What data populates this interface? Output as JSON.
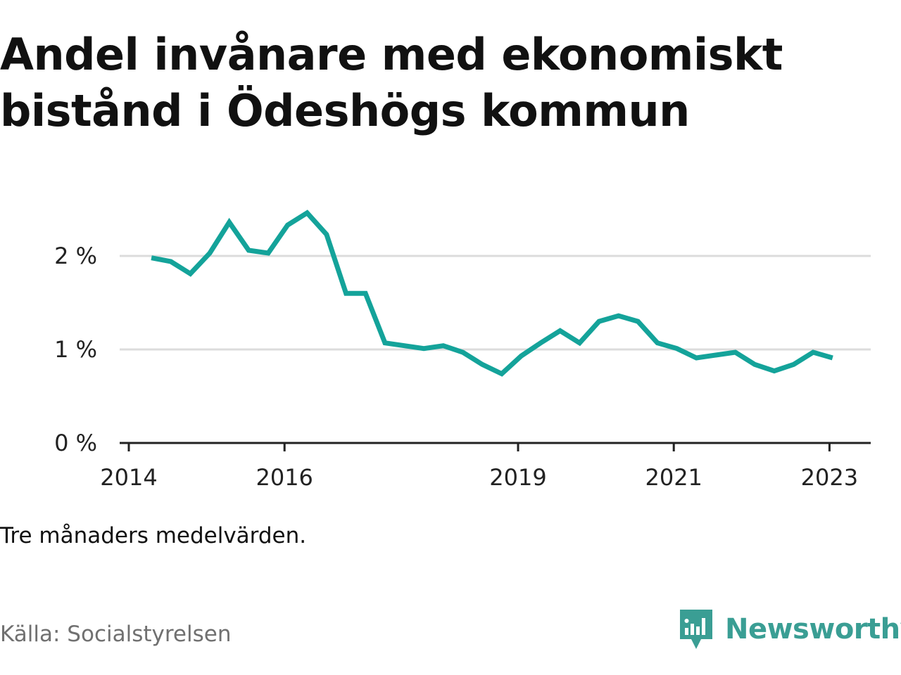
{
  "title": "Andel invånare med ekonomiskt bistånd i Ödeshögs kommun",
  "caption": "Tre månaders medelvärden.",
  "source": "Källa: Socialstyrelsen",
  "logo": {
    "name": "Newsworthy",
    "icon": "newsworthy-chart-bubble-icon"
  },
  "colors": {
    "line": "#14a39a",
    "grid": "#dcdcdc",
    "axis": "#222222",
    "text": "#111111",
    "source": "#707070",
    "logo": "#3a9e94"
  },
  "chart_data": {
    "type": "line",
    "title": "Andel invånare med ekonomiskt bistånd i Ödeshögs kommun",
    "xlabel": "",
    "ylabel": "",
    "xlim": [
      2014.0,
      2023.5
    ],
    "ylim": [
      0,
      2.6
    ],
    "y_ticks": [
      0,
      1,
      2
    ],
    "y_tick_labels": [
      "0 %",
      "1 %",
      "2 %"
    ],
    "x_ticks": [
      2014,
      2016,
      2019,
      2021,
      2023
    ],
    "x_tick_labels": [
      "2014",
      "2016",
      "2019",
      "2021",
      "2023"
    ],
    "grid": "horizontal",
    "series": [
      {
        "x": [
          2014.29,
          2014.54,
          2014.79,
          2015.04,
          2015.29,
          2015.54,
          2015.79,
          2016.04,
          2016.29,
          2016.54,
          2016.79,
          2017.04,
          2017.29,
          2017.54,
          2017.79,
          2018.04,
          2018.29,
          2018.54,
          2018.79,
          2019.04,
          2019.29,
          2019.54,
          2019.79,
          2020.04,
          2020.29,
          2020.54,
          2020.79,
          2021.04,
          2021.29,
          2021.54,
          2021.79,
          2022.04,
          2022.29,
          2022.54,
          2022.79,
          2023.04
        ],
        "values": [
          1.98,
          1.94,
          1.81,
          2.03,
          2.36,
          2.06,
          2.03,
          2.33,
          2.46,
          2.23,
          1.6,
          1.6,
          1.07,
          1.04,
          1.01,
          1.04,
          0.97,
          0.84,
          0.74,
          0.93,
          1.07,
          1.2,
          1.07,
          1.3,
          1.36,
          1.3,
          1.07,
          1.01,
          0.91,
          0.94,
          0.97,
          0.84,
          0.77,
          0.84,
          0.97,
          0.91
        ]
      }
    ]
  }
}
